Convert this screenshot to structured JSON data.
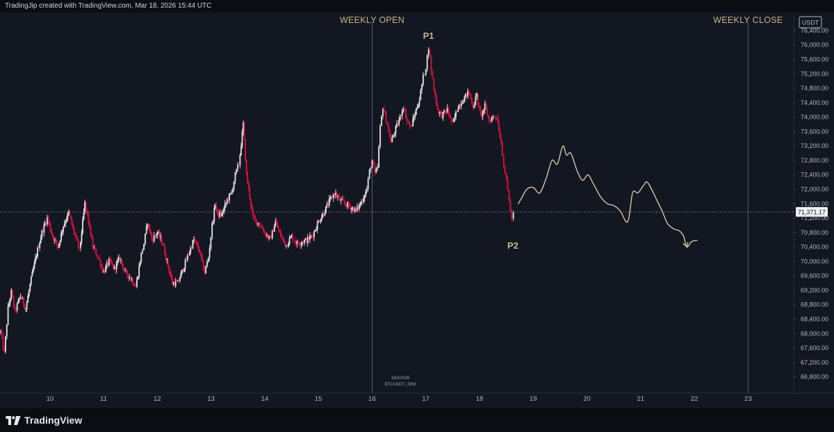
{
  "header": {
    "text": "TradingJip created with TradingView.com, Mar 18, 2026 15:44 UTC"
  },
  "footer": {
    "brand": "TradingView"
  },
  "colors": {
    "background": "#131722",
    "up_candle": "#e8e8e8",
    "down_candle": "#e0103f",
    "projection": "#d9c8a4",
    "annotation": "#c9b58a"
  },
  "chart_data": {
    "type": "candlestick",
    "symbol": "BTCUSDT | 30M",
    "date_note": "18/3/2026",
    "currency": "USDT",
    "current_price": 71371.17,
    "current_price_label": "71,371.17",
    "y_ticks": [
      "76,400.00",
      "76,000.00",
      "75,600.00",
      "75,200.00",
      "74,800.00",
      "74,400.00",
      "74,000.00",
      "73,600.00",
      "73,200.00",
      "72,800.00",
      "72,400.00",
      "72,000.00",
      "71,600.00",
      "71,200.00",
      "70,800.00",
      "70,400.00",
      "70,000.00",
      "69,600.00",
      "69,200.00",
      "68,800.00",
      "68,400.00",
      "68,000.00",
      "67,600.00",
      "67,200.00",
      "66,800.00"
    ],
    "x_ticks": [
      "10",
      "11",
      "12",
      "13",
      "14",
      "15",
      "16",
      "17",
      "18",
      "19",
      "20",
      "21",
      "22",
      "23"
    ],
    "x_tick_days": [
      10,
      11,
      12,
      13,
      14,
      15,
      16,
      17,
      18,
      19,
      20,
      21,
      22,
      23
    ],
    "x_range": [
      9.07,
      23.85
    ],
    "ylim": [
      66350,
      76900
    ],
    "vertical_markers": [
      {
        "day": 16.0,
        "label": "WEEKLY OPEN"
      },
      {
        "day": 23.0,
        "label": "WEEKLY CLOSE"
      }
    ],
    "points": [
      {
        "label": "P1",
        "day": 17.05,
        "price": 75960
      },
      {
        "label": "P2",
        "day": 18.62,
        "price": 70870
      }
    ],
    "price_path": [
      [
        9.08,
        68050
      ],
      [
        9.15,
        67450
      ],
      [
        9.22,
        68700
      ],
      [
        9.28,
        69150
      ],
      [
        9.35,
        68600
      ],
      [
        9.45,
        69050
      ],
      [
        9.55,
        68700
      ],
      [
        9.65,
        69500
      ],
      [
        9.75,
        70200
      ],
      [
        9.85,
        70800
      ],
      [
        9.95,
        71200
      ],
      [
        10.05,
        70700
      ],
      [
        10.15,
        70400
      ],
      [
        10.25,
        71000
      ],
      [
        10.35,
        71350
      ],
      [
        10.45,
        70800
      ],
      [
        10.55,
        70300
      ],
      [
        10.65,
        71600
      ],
      [
        10.72,
        71100
      ],
      [
        10.8,
        70400
      ],
      [
        10.9,
        70100
      ],
      [
        11.0,
        69700
      ],
      [
        11.1,
        70000
      ],
      [
        11.2,
        69800
      ],
      [
        11.3,
        70100
      ],
      [
        11.4,
        69700
      ],
      [
        11.5,
        69550
      ],
      [
        11.6,
        69300
      ],
      [
        11.7,
        70200
      ],
      [
        11.75,
        70500
      ],
      [
        11.82,
        71100
      ],
      [
        11.9,
        70600
      ],
      [
        12.0,
        70800
      ],
      [
        12.1,
        70500
      ],
      [
        12.18,
        70000
      ],
      [
        12.28,
        69400
      ],
      [
        12.38,
        69400
      ],
      [
        12.48,
        69800
      ],
      [
        12.58,
        70200
      ],
      [
        12.68,
        70600
      ],
      [
        12.78,
        70300
      ],
      [
        12.88,
        69700
      ],
      [
        12.95,
        70100
      ],
      [
        13.02,
        71000
      ],
      [
        13.08,
        71600
      ],
      [
        13.12,
        71300
      ],
      [
        13.2,
        71300
      ],
      [
        13.3,
        71700
      ],
      [
        13.38,
        71900
      ],
      [
        13.45,
        72400
      ],
      [
        13.52,
        72700
      ],
      [
        13.6,
        73800
      ],
      [
        13.66,
        72400
      ],
      [
        13.72,
        71800
      ],
      [
        13.78,
        71200
      ],
      [
        13.85,
        71100
      ],
      [
        13.9,
        71050
      ],
      [
        14.0,
        70800
      ],
      [
        14.1,
        70600
      ],
      [
        14.2,
        71100
      ],
      [
        14.3,
        70700
      ],
      [
        14.4,
        70450
      ],
      [
        14.5,
        70700
      ],
      [
        14.6,
        70500
      ],
      [
        14.7,
        70550
      ],
      [
        14.8,
        70600
      ],
      [
        14.9,
        70750
      ],
      [
        15.0,
        71100
      ],
      [
        15.1,
        71350
      ],
      [
        15.2,
        71650
      ],
      [
        15.3,
        71900
      ],
      [
        15.4,
        71700
      ],
      [
        15.5,
        71600
      ],
      [
        15.6,
        71500
      ],
      [
        15.7,
        71400
      ],
      [
        15.8,
        71650
      ],
      [
        15.9,
        72000
      ],
      [
        15.95,
        72500
      ],
      [
        16.0,
        72800
      ],
      [
        16.05,
        72400
      ],
      [
        16.1,
        72600
      ],
      [
        16.15,
        73700
      ],
      [
        16.2,
        74300
      ],
      [
        16.28,
        73800
      ],
      [
        16.35,
        73300
      ],
      [
        16.42,
        73600
      ],
      [
        16.5,
        73900
      ],
      [
        16.58,
        74300
      ],
      [
        16.65,
        73900
      ],
      [
        16.72,
        73700
      ],
      [
        16.8,
        74100
      ],
      [
        16.88,
        74500
      ],
      [
        16.95,
        75100
      ],
      [
        17.0,
        75400
      ],
      [
        17.05,
        75950
      ],
      [
        17.1,
        75300
      ],
      [
        17.15,
        74800
      ],
      [
        17.22,
        74200
      ],
      [
        17.3,
        74050
      ],
      [
        17.4,
        74200
      ],
      [
        17.5,
        73800
      ],
      [
        17.6,
        74300
      ],
      [
        17.7,
        74500
      ],
      [
        17.8,
        74700
      ],
      [
        17.88,
        74300
      ],
      [
        17.95,
        74600
      ],
      [
        18.02,
        74000
      ],
      [
        18.1,
        74300
      ],
      [
        18.18,
        73900
      ],
      [
        18.25,
        74000
      ],
      [
        18.32,
        74050
      ],
      [
        18.4,
        73300
      ],
      [
        18.45,
        72700
      ],
      [
        18.5,
        72200
      ],
      [
        18.55,
        71700
      ],
      [
        18.6,
        71150
      ],
      [
        18.63,
        71370
      ]
    ],
    "projection_path": [
      [
        18.72,
        71600
      ],
      [
        18.78,
        71750
      ],
      [
        18.88,
        72000
      ],
      [
        19.0,
        72050
      ],
      [
        19.12,
        71900
      ],
      [
        19.24,
        72300
      ],
      [
        19.35,
        72800
      ],
      [
        19.45,
        72700
      ],
      [
        19.55,
        73200
      ],
      [
        19.62,
        72950
      ],
      [
        19.7,
        73000
      ],
      [
        19.82,
        72500
      ],
      [
        19.92,
        72250
      ],
      [
        20.02,
        72400
      ],
      [
        20.12,
        72150
      ],
      [
        20.25,
        71800
      ],
      [
        20.38,
        71600
      ],
      [
        20.5,
        71550
      ],
      [
        20.62,
        71400
      ],
      [
        20.76,
        71100
      ],
      [
        20.85,
        71900
      ],
      [
        20.95,
        71900
      ],
      [
        21.05,
        72100
      ],
      [
        21.12,
        72200
      ],
      [
        21.22,
        71950
      ],
      [
        21.3,
        71700
      ],
      [
        21.4,
        71400
      ],
      [
        21.5,
        71050
      ],
      [
        21.62,
        70900
      ],
      [
        21.72,
        70850
      ],
      [
        21.8,
        70700
      ],
      [
        21.86,
        70400
      ],
      [
        21.95,
        70550
      ],
      [
        22.05,
        70580
      ]
    ]
  }
}
